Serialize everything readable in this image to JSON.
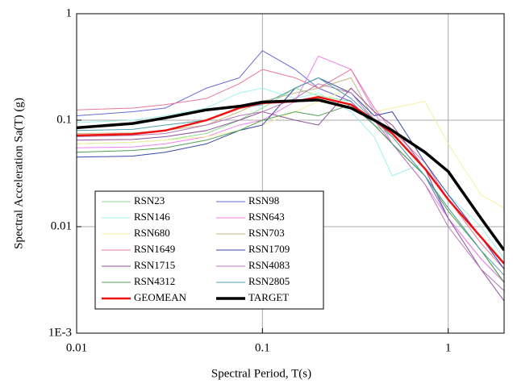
{
  "chart_data": {
    "type": "line",
    "xlabel": "Spectral Period, T(s)",
    "ylabel": "Spectral Acceleration Sa(T) (g)",
    "xscale": "log",
    "yscale": "log",
    "grid": true,
    "x": [
      0.01,
      0.02,
      0.03,
      0.05,
      0.075,
      0.1,
      0.15,
      0.2,
      0.3,
      0.4,
      0.5,
      0.75,
      1,
      1.5,
      2
    ],
    "xlim": [
      0.01,
      2
    ],
    "xticks": [
      0.01,
      0.1,
      1
    ],
    "ylim": [
      0.001,
      1
    ],
    "yticks": [
      {
        "value": 0.001,
        "label": "1E-3"
      },
      0.01,
      0.1,
      1
    ],
    "legend": "lower left",
    "series": [
      {
        "name": "RSN23",
        "color": "#8fe08f",
        "linewidth": 1,
        "values": [
          0.06,
          0.062,
          0.065,
          0.075,
          0.1,
          0.13,
          0.2,
          0.17,
          0.15,
          0.09,
          0.07,
          0.03,
          0.015,
          0.006,
          0.003
        ]
      },
      {
        "name": "RSN98",
        "color": "#6a6ad8",
        "linewidth": 1,
        "values": [
          0.11,
          0.12,
          0.13,
          0.2,
          0.25,
          0.45,
          0.3,
          0.2,
          0.15,
          0.09,
          0.06,
          0.03,
          0.012,
          0.005,
          0.003
        ]
      },
      {
        "name": "RSN146",
        "color": "#a0f0f0",
        "linewidth": 1,
        "values": [
          0.095,
          0.1,
          0.11,
          0.13,
          0.18,
          0.2,
          0.16,
          0.18,
          0.12,
          0.07,
          0.03,
          0.04,
          0.02,
          0.01,
          0.005
        ]
      },
      {
        "name": "RSN643",
        "color": "#ee82ee",
        "linewidth": 1,
        "values": [
          0.055,
          0.056,
          0.06,
          0.07,
          0.09,
          0.1,
          0.15,
          0.4,
          0.3,
          0.12,
          0.06,
          0.025,
          0.012,
          0.005,
          0.003
        ]
      },
      {
        "name": "RSN680",
        "color": "#f5f0a0",
        "linewidth": 1,
        "values": [
          0.06,
          0.062,
          0.065,
          0.07,
          0.08,
          0.09,
          0.12,
          0.15,
          0.2,
          0.12,
          0.13,
          0.15,
          0.06,
          0.02,
          0.015
        ]
      },
      {
        "name": "RSN703",
        "color": "#c8b482",
        "linewidth": 1,
        "values": [
          0.075,
          0.076,
          0.08,
          0.09,
          0.12,
          0.15,
          0.18,
          0.2,
          0.25,
          0.1,
          0.07,
          0.03,
          0.015,
          0.006,
          0.003
        ]
      },
      {
        "name": "RSN1649",
        "color": "#e87898",
        "linewidth": 1,
        "values": [
          0.125,
          0.13,
          0.14,
          0.16,
          0.22,
          0.3,
          0.25,
          0.2,
          0.3,
          0.13,
          0.08,
          0.04,
          0.018,
          0.007,
          0.004
        ]
      },
      {
        "name": "RSN1709",
        "color": "#3848a8",
        "linewidth": 1,
        "values": [
          0.045,
          0.046,
          0.05,
          0.06,
          0.08,
          0.09,
          0.2,
          0.25,
          0.18,
          0.11,
          0.12,
          0.04,
          0.02,
          0.008,
          0.004
        ]
      },
      {
        "name": "RSN1715",
        "color": "#9050a0",
        "linewidth": 1,
        "values": [
          0.065,
          0.066,
          0.07,
          0.08,
          0.1,
          0.12,
          0.1,
          0.09,
          0.2,
          0.12,
          0.09,
          0.035,
          0.012,
          0.004,
          0.002
        ]
      },
      {
        "name": "RSN4083",
        "color": "#b878b8",
        "linewidth": 1,
        "values": [
          0.07,
          0.072,
          0.075,
          0.09,
          0.11,
          0.12,
          0.16,
          0.22,
          0.18,
          0.1,
          0.06,
          0.025,
          0.01,
          0.004,
          0.0025
        ]
      },
      {
        "name": "RSN4312",
        "color": "#50a050",
        "linewidth": 1,
        "values": [
          0.05,
          0.052,
          0.055,
          0.065,
          0.08,
          0.1,
          0.12,
          0.11,
          0.14,
          0.09,
          0.06,
          0.03,
          0.014,
          0.006,
          0.003
        ]
      },
      {
        "name": "RSN2805",
        "color": "#50a0b0",
        "linewidth": 1,
        "values": [
          0.08,
          0.082,
          0.09,
          0.1,
          0.13,
          0.14,
          0.2,
          0.25,
          0.16,
          0.1,
          0.07,
          0.03,
          0.015,
          0.006,
          0.0035
        ]
      },
      {
        "name": "GEOMEAN",
        "color": "#ee1111",
        "linewidth": 2.5,
        "values": [
          0.072,
          0.074,
          0.08,
          0.1,
          0.13,
          0.145,
          0.15,
          0.165,
          0.14,
          0.1,
          0.075,
          0.035,
          0.018,
          0.008,
          0.0045
        ]
      },
      {
        "name": "TARGET",
        "color": "#000000",
        "linewidth": 3.5,
        "values": [
          0.085,
          0.093,
          0.105,
          0.125,
          0.135,
          0.148,
          0.152,
          0.155,
          0.13,
          0.1,
          0.08,
          0.05,
          0.033,
          0.012,
          0.006
        ]
      }
    ]
  }
}
